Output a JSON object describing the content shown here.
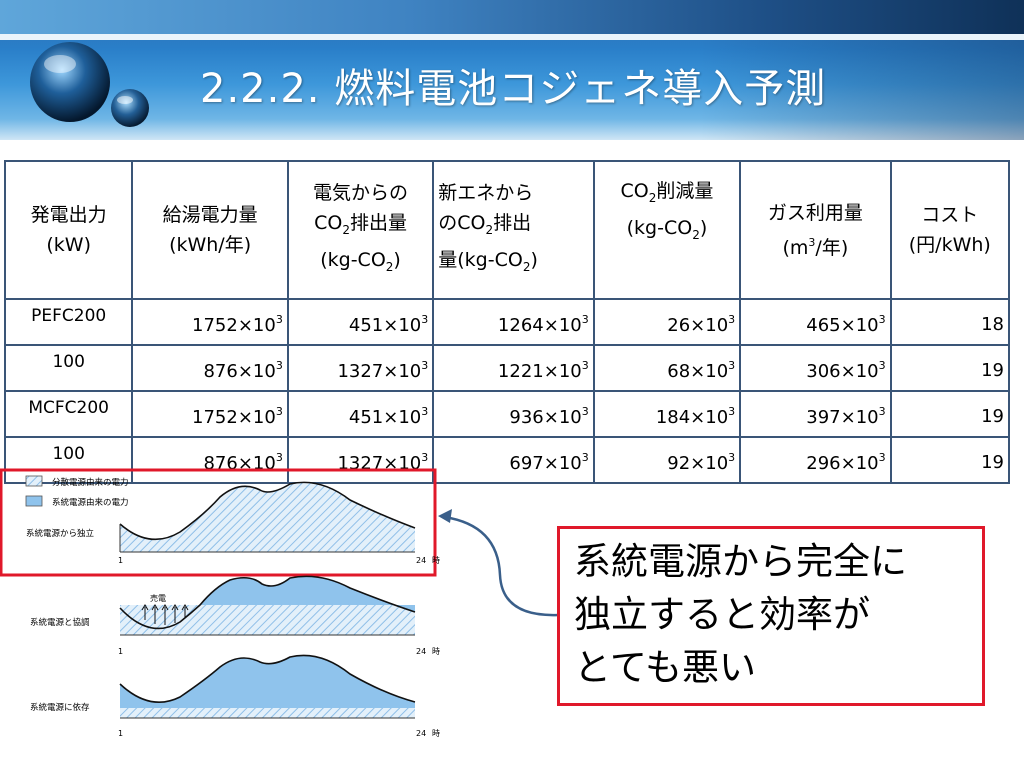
{
  "title": "2.2.2. 燃料電池コジェネ導入予測",
  "table": {
    "headers": [
      {
        "lines": [
          "発電出力",
          "(kW)"
        ]
      },
      {
        "lines": [
          "給湯電力量",
          "(kWh/年)"
        ]
      },
      {
        "lines": [
          "電気からの",
          "CO2排出量",
          "(kg-CO2)"
        ]
      },
      {
        "lines": [
          "新エネから",
          "のCO2排出",
          "量(kg-CO2)"
        ]
      },
      {
        "lines": [
          "CO2削減量",
          "(kg-CO2)"
        ]
      },
      {
        "lines": [
          "ガス利用量",
          "(m3/年)"
        ]
      },
      {
        "lines": [
          "コスト",
          "(円/kWh)"
        ]
      }
    ],
    "rows": [
      {
        "name": "PEFC200",
        "cells": [
          "1752×10",
          "451×10",
          "1264×10",
          "26×10",
          "465×10"
        ],
        "exp": "3",
        "cost": "18"
      },
      {
        "name": "100",
        "cells": [
          "876×10",
          "1327×10",
          "1221×10",
          "68×10",
          "306×10"
        ],
        "exp": "3",
        "cost": "19"
      },
      {
        "name": "MCFC200",
        "cells": [
          "1752×10",
          "451×10",
          "936×10",
          "184×10",
          "397×10"
        ],
        "exp": "3",
        "cost": "19"
      },
      {
        "name": "100",
        "cells": [
          "876×10",
          "1327×10",
          "697×10",
          "92×10",
          "296×10"
        ],
        "exp": "3",
        "cost": "19"
      }
    ]
  },
  "diagram": {
    "legend": [
      "分散電源由来の電力",
      "系統電源由来の電力"
    ],
    "panels": [
      {
        "label": "系統電源から独立",
        "axis_start": "1",
        "axis_end": "24",
        "unit": "時"
      },
      {
        "label": "系統電源と協調",
        "axis_start": "1",
        "axis_end": "24",
        "unit": "時",
        "annotation": "売電"
      },
      {
        "label": "系統電源に依存",
        "axis_start": "1",
        "axis_end": "24",
        "unit": "時"
      }
    ]
  },
  "callout": {
    "lines": [
      "系統電源から完全に",
      "独立すると効率が",
      "とても悪い"
    ]
  },
  "colors": {
    "accent_red": "#e0182a",
    "grid_blue": "#8fbfe8",
    "hatch_blue": "#b9d9f2",
    "arrow": "#3a5f8a"
  }
}
